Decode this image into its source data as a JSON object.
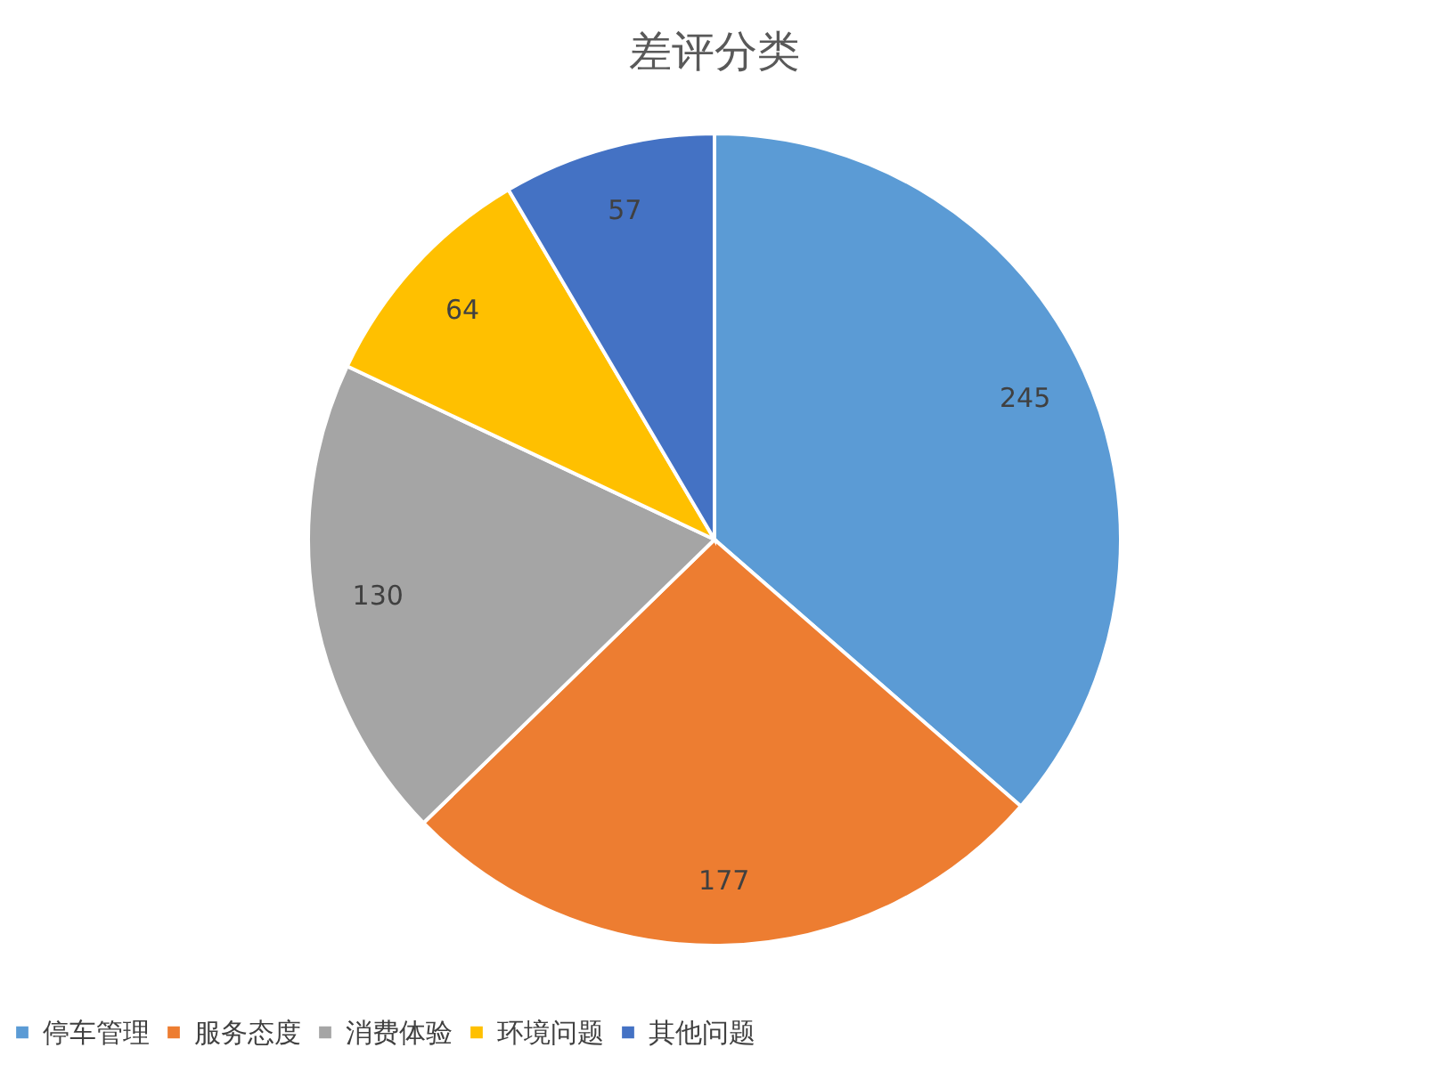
{
  "chart_data": {
    "type": "pie",
    "title": "差评分类",
    "categories": [
      "停车管理",
      "服务态度",
      "消费体验",
      "环境问题",
      "其他问题"
    ],
    "values": [
      245,
      177,
      130,
      64,
      57
    ],
    "colors": [
      "#5b9bd5",
      "#ed7d31",
      "#a5a5a5",
      "#ffc000",
      "#4472c4"
    ],
    "data_labels": true,
    "legend": "bottom"
  }
}
